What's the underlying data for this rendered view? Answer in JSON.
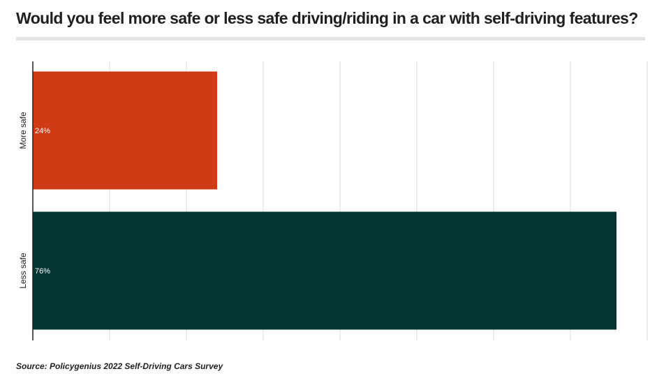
{
  "title": "Would you feel more safe or less safe driving/riding in a car with self-driving features?",
  "source": "Source: Policygenius 2022 Self-Driving Cars Survey",
  "chart_data": {
    "type": "bar",
    "orientation": "horizontal",
    "categories": [
      "More safe",
      "Less safe"
    ],
    "values": [
      24,
      76
    ],
    "value_labels": [
      "24%",
      "76%"
    ],
    "colors": [
      "#cf3b14",
      "#043533"
    ],
    "xlim": [
      0,
      80
    ],
    "grid": true,
    "xlabel": "",
    "ylabel": ""
  }
}
